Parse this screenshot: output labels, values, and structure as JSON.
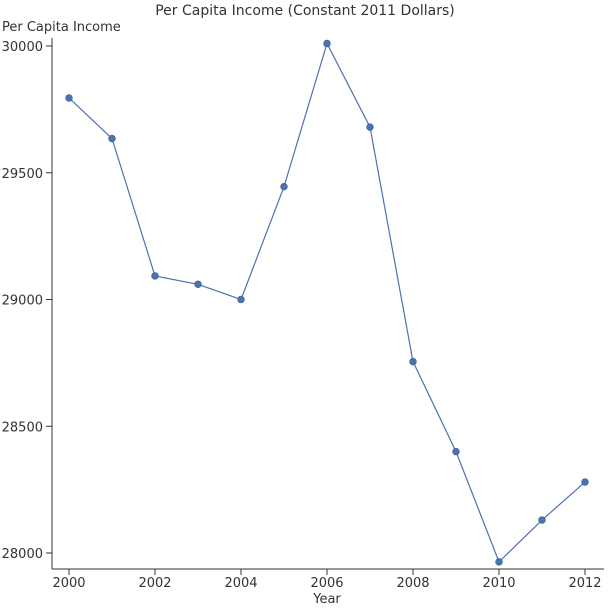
{
  "chart_data": {
    "type": "line",
    "title": "Per Capita Income (Constant 2011 Dollars)",
    "xlabel": "Year",
    "ylabel": "Per Capita Income",
    "x": [
      2000,
      2001,
      2002,
      2003,
      2004,
      2005,
      2006,
      2007,
      2008,
      2009,
      2010,
      2011,
      2012
    ],
    "series": [
      {
        "values": [
          29795,
          29635,
          29093,
          29060,
          29000,
          29445,
          30010,
          29680,
          28755,
          28400,
          27965,
          28130,
          28280
        ],
        "color": "#4c72b0"
      }
    ],
    "xticks": [
      "2000",
      "2002",
      "2004",
      "2006",
      "2008",
      "2010",
      "2012"
    ],
    "yticks": [
      "28000",
      "28500",
      "29000",
      "29500",
      "30000"
    ],
    "xlim": [
      2000,
      2012
    ],
    "ylim": [
      28000,
      30000
    ],
    "grid": false,
    "legend": "none"
  }
}
